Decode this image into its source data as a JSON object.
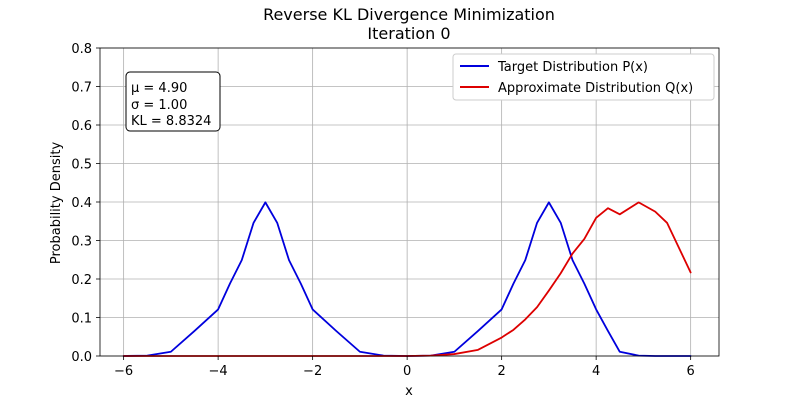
{
  "chart_data": {
    "type": "line",
    "title": "Reverse KL Divergence Minimization",
    "subtitle": "Iteration 0",
    "xlabel": "x",
    "ylabel": "Probability Density",
    "xlim": [
      -6.5,
      6.6
    ],
    "ylim": [
      0,
      0.8
    ],
    "x_ticks": [
      -6,
      -4,
      -2,
      0,
      2,
      4,
      6
    ],
    "x_tick_labels": [
      "−6",
      "−4",
      "−2",
      "0",
      "2",
      "4",
      "6"
    ],
    "y_ticks": [
      0.0,
      0.1,
      0.2,
      0.3,
      0.4,
      0.5,
      0.6,
      0.7,
      0.8
    ],
    "y_tick_labels": [
      "0.0",
      "0.1",
      "0.2",
      "0.3",
      "0.4",
      "0.5",
      "0.6",
      "0.7",
      "0.8"
    ],
    "grid": true,
    "legend_position": "top-right",
    "x": [
      -6.0,
      -5.5,
      -5.0,
      -4.5,
      -4.0,
      -3.75,
      -3.5,
      -3.25,
      -3.0,
      -2.75,
      -2.5,
      -2.25,
      -2.0,
      -1.5,
      -1.0,
      -0.5,
      0.0,
      0.5,
      1.0,
      1.5,
      2.0,
      2.25,
      2.5,
      2.75,
      3.0,
      3.25,
      3.5,
      3.75,
      4.0,
      4.25,
      4.5,
      4.9,
      5.25,
      5.5,
      6.0
    ],
    "series": [
      {
        "name": "Target Distribution P(x)",
        "color": "#0000dd",
        "values": [
          0.0,
          0.001,
          0.011,
          0.065,
          0.121,
          0.188,
          0.249,
          0.346,
          0.399,
          0.346,
          0.249,
          0.188,
          0.121,
          0.065,
          0.011,
          0.001,
          0.0,
          0.001,
          0.011,
          0.065,
          0.121,
          0.188,
          0.249,
          0.346,
          0.399,
          0.346,
          0.249,
          0.188,
          0.121,
          0.065,
          0.011,
          0.001,
          0.0,
          0.0,
          0.0
        ]
      },
      {
        "name": "Approximate Distribution Q(x)",
        "color": "#dd0000",
        "values": [
          0.0,
          0.0,
          0.0,
          0.0,
          0.0,
          0.0,
          0.0,
          0.0,
          0.0,
          0.0,
          0.0,
          0.0,
          0.0,
          0.0,
          0.0,
          0.0,
          0.0,
          0.001,
          0.005,
          0.016,
          0.048,
          0.068,
          0.095,
          0.127,
          0.17,
          0.215,
          0.266,
          0.304,
          0.359,
          0.384,
          0.368,
          0.399,
          0.375,
          0.346,
          0.217
        ]
      }
    ],
    "annotation": {
      "mu_line": "μ = 4.90",
      "sigma_line": "σ = 1.00",
      "kl_line": "KL = 8.8324"
    }
  }
}
